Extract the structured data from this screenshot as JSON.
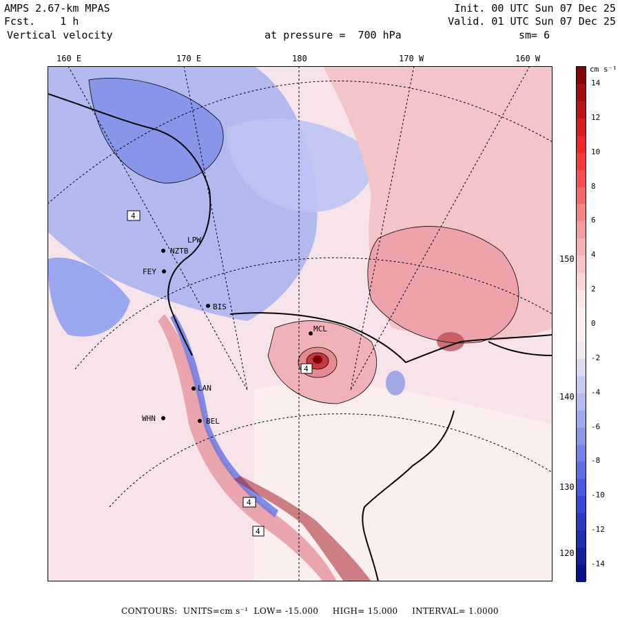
{
  "header": {
    "model": "AMPS 2.67-km MPAS",
    "fcst_label": "Fcst.",
    "fcst_value": "1 h",
    "field": "Vertical velocity",
    "init": "Init. 00 UTC Sun 07 Dec 25",
    "valid": "Valid. 01 UTC Sun 07 Dec 25",
    "level": "at pressure =  700 hPa",
    "smoothing": "sm= 6"
  },
  "longitude_labels": [
    "160 E",
    "170 E",
    "180",
    "170 W",
    "160 W"
  ],
  "latitude_labels": [
    "150 W",
    "140 W",
    "130 W",
    "120 W"
  ],
  "colorbar": {
    "units": "cm s⁻¹",
    "ticks": [
      "14",
      "12",
      "10",
      "8",
      "6",
      "4",
      "2",
      "0",
      "-2",
      "-4",
      "-6",
      "-8",
      "-10",
      "-12",
      "-14"
    ],
    "range": [
      -15,
      15
    ],
    "colors": {
      "strong_up": "#7a0000",
      "up": "#ff2a2a",
      "weak_up": "#f4a8a8",
      "neutral": "#fbeeee",
      "weak_down": "#aab4f0",
      "down": "#3c4fe0",
      "strong_down": "#000c80"
    }
  },
  "stations": [
    "LPW",
    "NZTB",
    "FEY",
    "BIS",
    "MCL",
    "LAN",
    "WHN",
    "BEL",
    "4",
    "4",
    "4",
    "4"
  ],
  "footer": {
    "contours_label": "CONTOURS:",
    "units": "UNITS=cm s⁻¹",
    "low": "LOW= -15.000",
    "high": "HIGH= 15.000",
    "interval": "INTERVAL= 1.0000"
  }
}
